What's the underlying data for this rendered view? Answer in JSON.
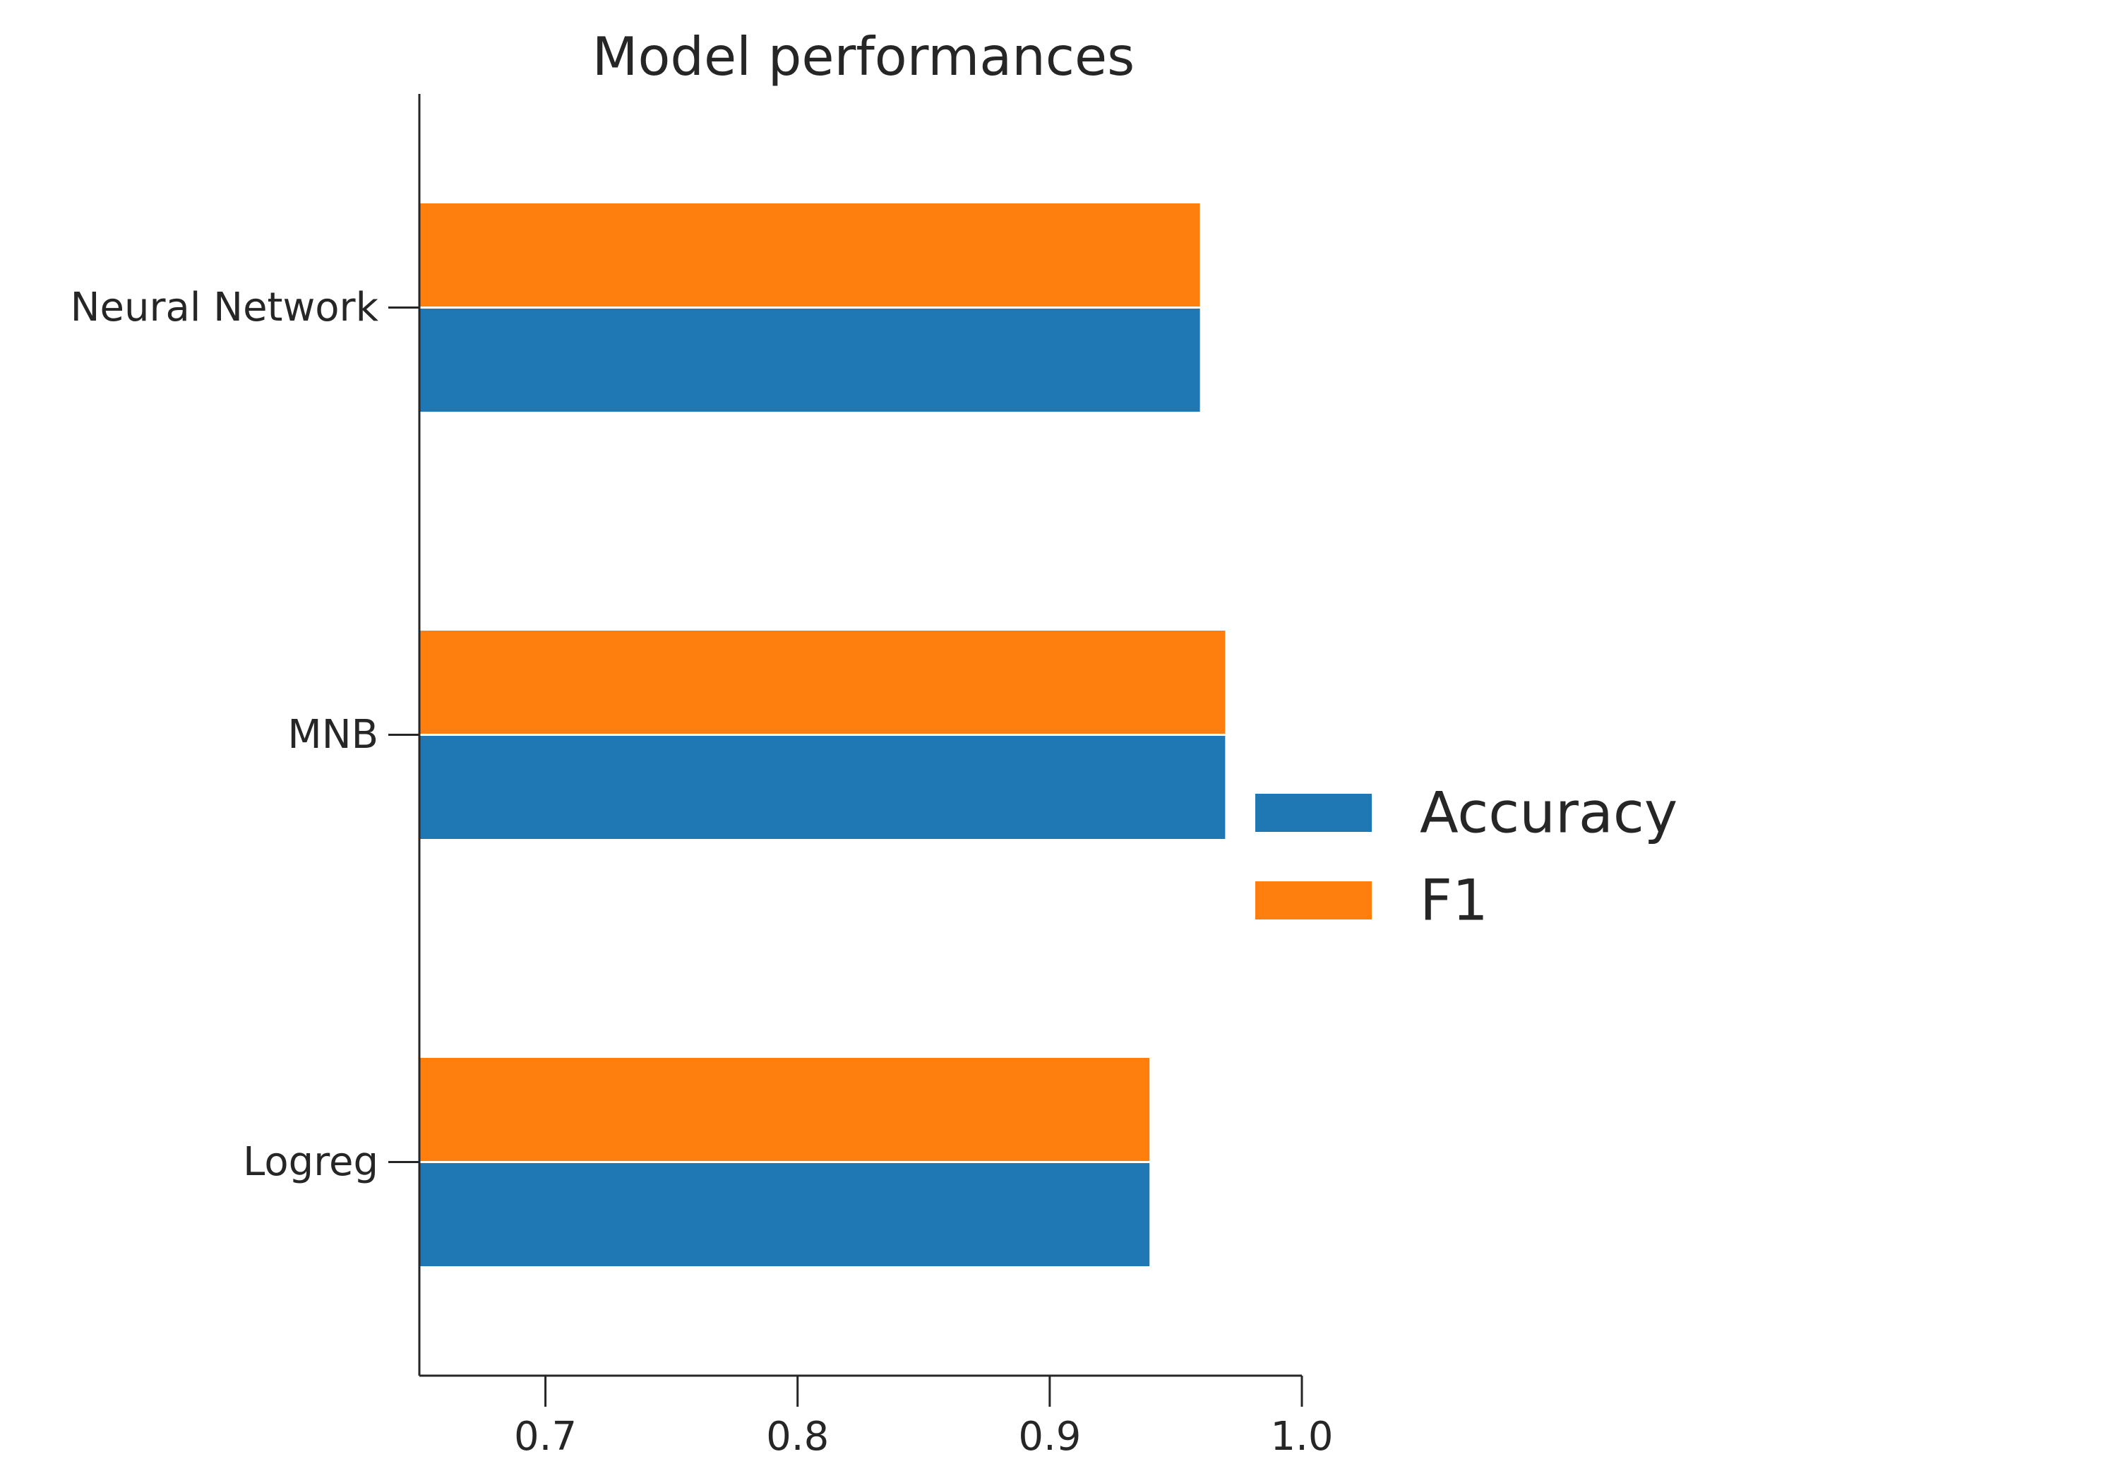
{
  "chart_data": {
    "type": "bar",
    "orientation": "horizontal",
    "title": "Model performances",
    "xlabel": "",
    "ylabel": "",
    "categories": [
      "Logreg",
      "MNB",
      "Neural Network"
    ],
    "series": [
      {
        "name": "Accuracy",
        "color": "#1f77b4",
        "values": [
          0.94,
          0.97,
          0.96
        ]
      },
      {
        "name": "F1",
        "color": "#ff7f0e",
        "values": [
          0.94,
          0.97,
          0.96
        ]
      }
    ],
    "xlim": [
      0.65,
      1.0
    ],
    "xticks": [
      "0.7",
      "0.8",
      "0.9",
      "1.0"
    ],
    "grid": false,
    "legend_position": "right"
  }
}
